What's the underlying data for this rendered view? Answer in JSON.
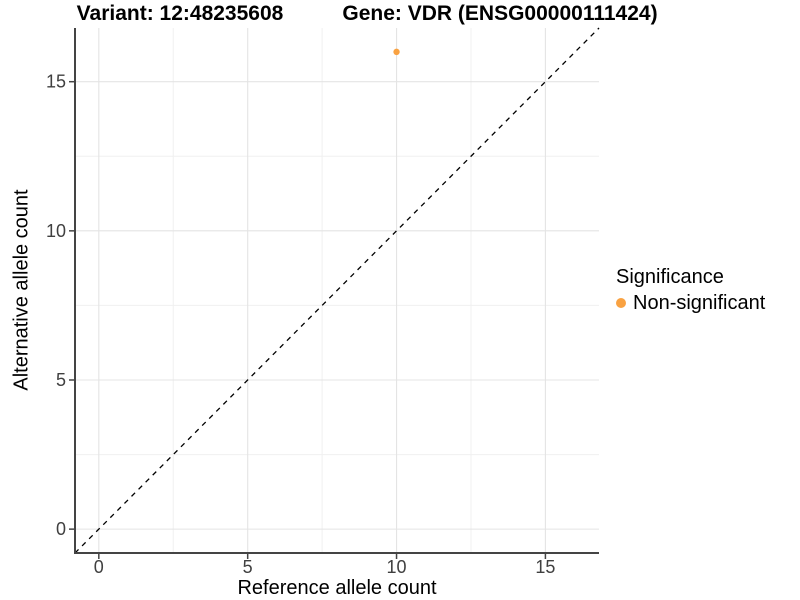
{
  "chart_data": {
    "type": "scatter",
    "titles": [
      "Variant: 12:48235608",
      "Gene: VDR (ENSG00000111424)"
    ],
    "xlabel": "Reference allele count",
    "ylabel": "Alternative allele count",
    "xlim": [
      -0.8,
      16.8
    ],
    "ylim": [
      -0.8,
      16.8
    ],
    "xticks": [
      0,
      5,
      10,
      15
    ],
    "yticks": [
      0,
      5,
      10,
      15
    ],
    "x_minor_ticks": [
      2.5,
      7.5,
      12.5
    ],
    "y_minor_ticks": [
      2.5,
      7.5,
      12.5
    ],
    "grid": "major+minor",
    "points": [
      {
        "x": 10,
        "y": 16,
        "series": "Non-significant"
      }
    ],
    "identity_line": {
      "slope": 1,
      "intercept": 0,
      "style": "dashed",
      "color": "#000000"
    },
    "legend": {
      "title": "Significance",
      "position": "right",
      "items": [
        {
          "label": "Non-significant",
          "color": "#F9A242"
        }
      ]
    },
    "colors": {
      "point": "#F9A242",
      "axis_line": "#444444",
      "tick": "#444444",
      "tick_label": "#404040",
      "grid_major": "#E4E4E4",
      "grid_minor": "#F0F0F0"
    }
  }
}
